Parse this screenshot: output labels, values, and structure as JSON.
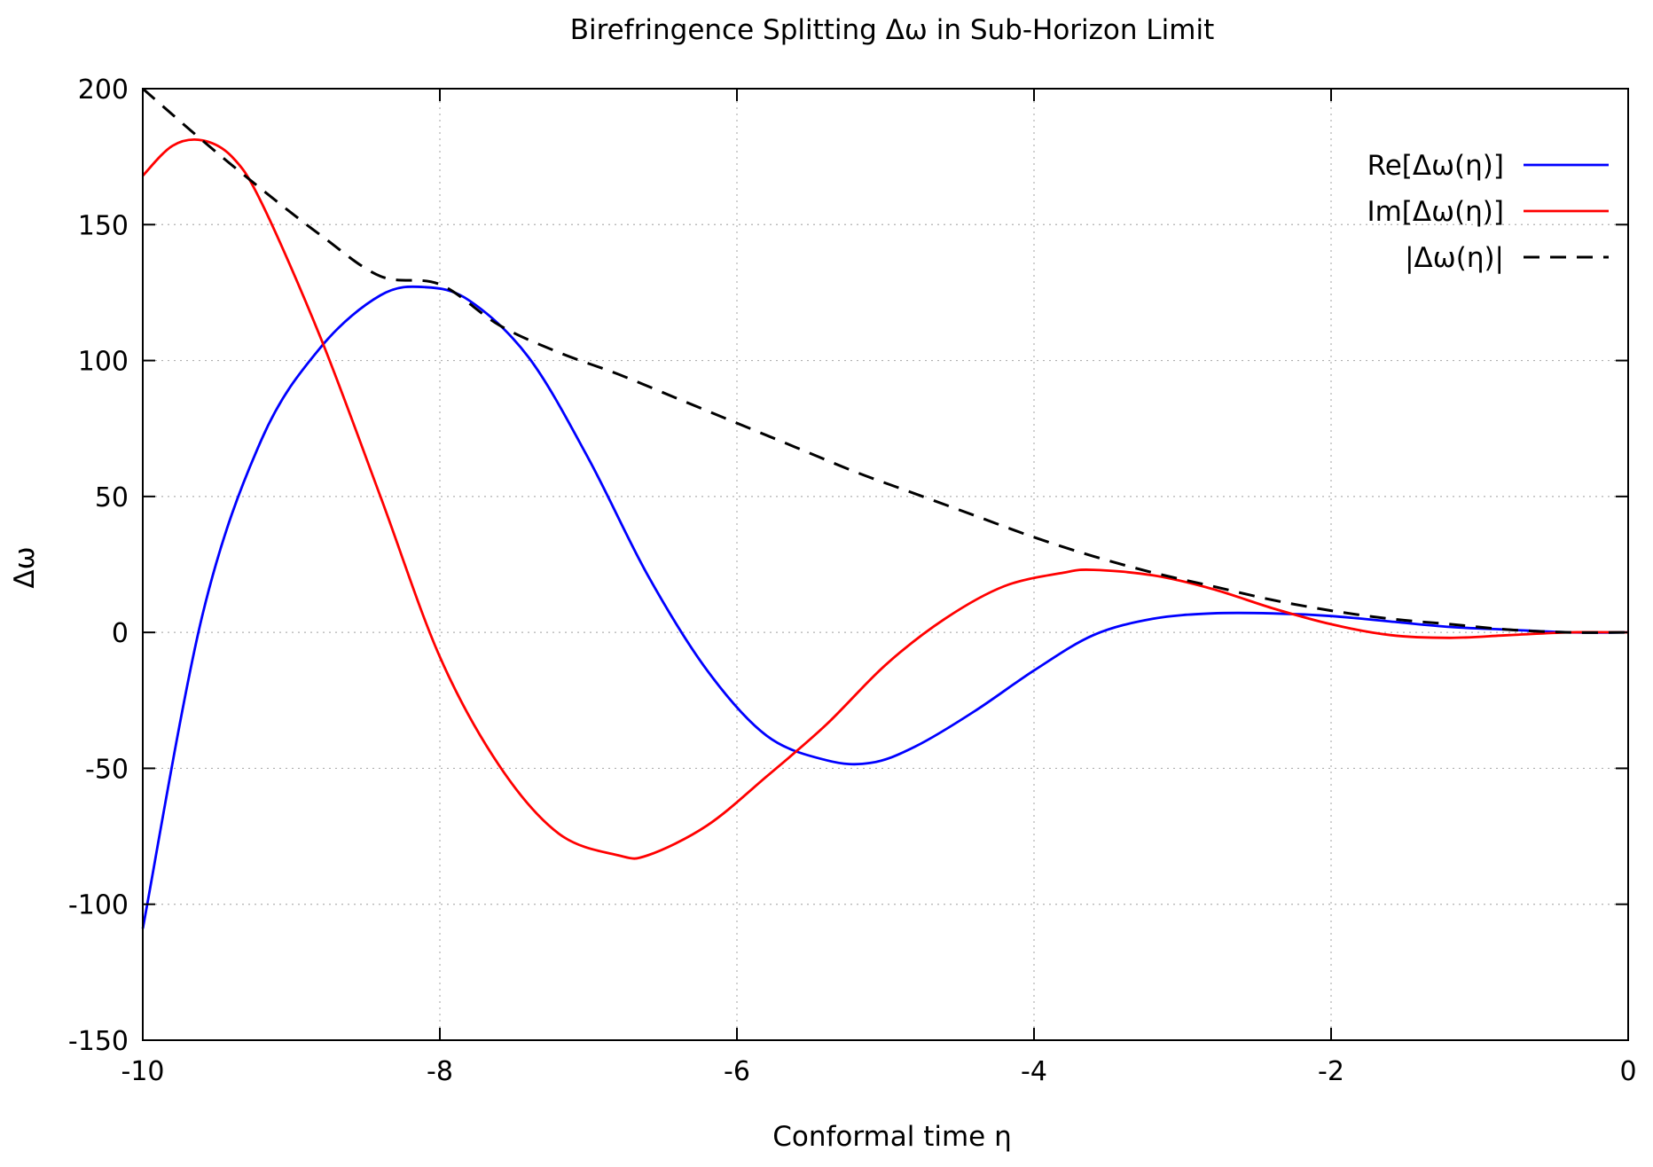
{
  "chart_data": {
    "type": "line",
    "title": "Birefringence Splitting Δω in Sub-Horizon Limit",
    "xlabel": "Conformal time η",
    "ylabel": "Δω",
    "xlim": [
      -10,
      0
    ],
    "ylim": [
      -150,
      200
    ],
    "xticks": [
      -10,
      -8,
      -6,
      -4,
      -2,
      0
    ],
    "yticks": [
      -150,
      -100,
      -50,
      0,
      50,
      100,
      150,
      200
    ],
    "grid": true,
    "legend_position": "top-right",
    "series": [
      {
        "name": "Re[Δω(η)]",
        "color": "#0000ff",
        "style": "solid",
        "x": [
          -10,
          -9.6,
          -9.2,
          -8.8,
          -8.4,
          -8.1,
          -7.8,
          -7.4,
          -7.0,
          -6.6,
          -6.2,
          -5.8,
          -5.4,
          -5.1,
          -4.8,
          -4.4,
          -4.0,
          -3.6,
          -3.2,
          -2.8,
          -2.4,
          -2.0,
          -1.6,
          -1.2,
          -0.8,
          -0.4,
          0
        ],
        "values": [
          -109,
          6,
          71,
          105,
          124,
          127,
          122,
          101,
          64,
          21,
          -14,
          -38,
          -47,
          -48,
          -42,
          -29,
          -14,
          -1,
          5,
          7,
          7,
          6,
          4,
          2,
          1,
          0,
          0
        ]
      },
      {
        "name": "Im[Δω(η)]",
        "color": "#ff0000",
        "style": "solid",
        "x": [
          -10,
          -9.8,
          -9.6,
          -9.4,
          -9.2,
          -8.8,
          -8.4,
          -8.0,
          -7.6,
          -7.2,
          -6.8,
          -6.6,
          -6.2,
          -5.8,
          -5.4,
          -5.0,
          -4.6,
          -4.2,
          -3.8,
          -3.6,
          -3.2,
          -2.8,
          -2.4,
          -2.0,
          -1.6,
          -1.2,
          -0.8,
          -0.4,
          0
        ],
        "values": [
          168,
          179,
          181,
          175,
          158,
          108,
          50,
          -9,
          -49,
          -74,
          -82,
          -82,
          -71,
          -53,
          -34,
          -12,
          5,
          17,
          22,
          23,
          21,
          16,
          9,
          3,
          -1,
          -2,
          -1,
          0,
          0
        ]
      },
      {
        "name": "|Δω(η)|",
        "color": "#000000",
        "style": "dashed",
        "x": [
          -10,
          -9.6,
          -9.2,
          -8.8,
          -8.4,
          -8.0,
          -7.6,
          -7.2,
          -6.8,
          -6.4,
          -6.0,
          -5.6,
          -5.2,
          -4.8,
          -4.4,
          -4.0,
          -3.6,
          -3.2,
          -2.8,
          -2.4,
          -2.0,
          -1.6,
          -1.2,
          -0.8,
          -0.4,
          0
        ],
        "values": [
          200,
          181,
          163,
          146,
          131,
          128,
          113,
          103,
          95,
          86,
          77,
          68,
          59,
          51,
          43,
          35,
          28,
          22,
          17,
          12,
          8,
          5,
          3,
          1,
          0,
          0
        ]
      }
    ]
  }
}
